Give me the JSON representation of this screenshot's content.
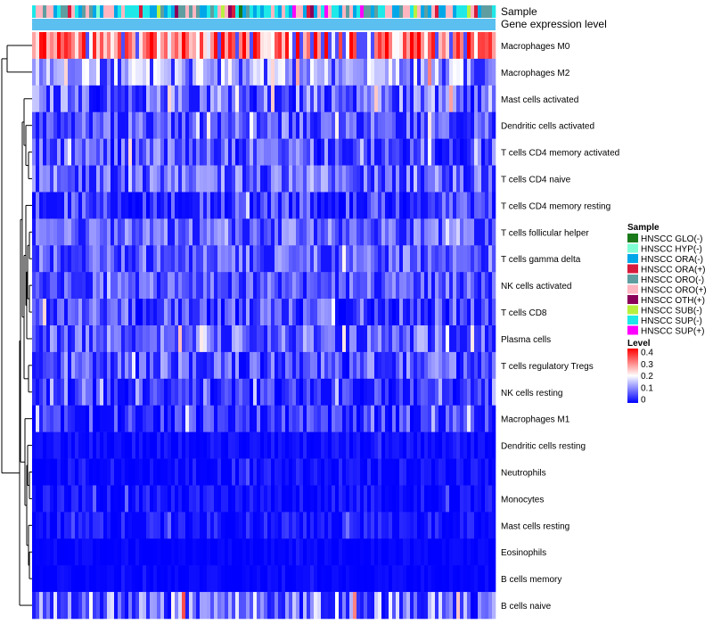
{
  "chart_data": {
    "type": "heatmap",
    "title": "",
    "annotation_labels": {
      "sample": "Sample",
      "gene_expression": "Gene expression level"
    },
    "rows": [
      {
        "label": "Macrophages M0",
        "mean": 0.3,
        "spread": 0.12
      },
      {
        "label": "Macrophages M2",
        "mean": 0.14,
        "spread": 0.07
      },
      {
        "label": "Mast cells activated",
        "mean": 0.08,
        "spread": 0.08
      },
      {
        "label": "Dendritic cells activated",
        "mean": 0.07,
        "spread": 0.06
      },
      {
        "label": "T cells CD4 memory activated",
        "mean": 0.07,
        "spread": 0.07
      },
      {
        "label": "T cells CD4 naive",
        "mean": 0.08,
        "spread": 0.07
      },
      {
        "label": "T cells CD4 memory resting",
        "mean": 0.05,
        "spread": 0.06
      },
      {
        "label": "T cells follicular helper",
        "mean": 0.09,
        "spread": 0.05
      },
      {
        "label": "T cells gamma delta",
        "mean": 0.08,
        "spread": 0.06
      },
      {
        "label": "NK cells activated",
        "mean": 0.07,
        "spread": 0.06
      },
      {
        "label": "T cells CD8",
        "mean": 0.06,
        "spread": 0.07
      },
      {
        "label": "Plasma cells",
        "mean": 0.08,
        "spread": 0.07
      },
      {
        "label": "T cells regulatory  Tregs",
        "mean": 0.07,
        "spread": 0.07
      },
      {
        "label": "NK cells resting",
        "mean": 0.04,
        "spread": 0.05
      },
      {
        "label": "Macrophages M1",
        "mean": 0.04,
        "spread": 0.06
      },
      {
        "label": "Dendritic cells resting",
        "mean": 0.01,
        "spread": 0.02
      },
      {
        "label": "Neutrophils",
        "mean": 0.01,
        "spread": 0.03
      },
      {
        "label": "Monocytes",
        "mean": 0.01,
        "spread": 0.03
      },
      {
        "label": "Mast cells resting",
        "mean": 0.02,
        "spread": 0.03
      },
      {
        "label": "Eosinophils",
        "mean": 0.005,
        "spread": 0.01
      },
      {
        "label": "B cells memory",
        "mean": 0.005,
        "spread": 0.01
      },
      {
        "label": "B cells naive",
        "mean": 0.1,
        "spread": 0.1
      }
    ],
    "n_samples": 130,
    "sample_legend": {
      "title": "Sample",
      "entries": [
        {
          "label": "HNSCC GLO(-)",
          "color": "#1a7a1a"
        },
        {
          "label": "HNSCC HYP(-)",
          "color": "#7fffd4"
        },
        {
          "label": "HNSCC ORA(-)",
          "color": "#00a7e8"
        },
        {
          "label": "HNSCC ORA(+)",
          "color": "#d81b3c"
        },
        {
          "label": "HNSCC ORO(-)",
          "color": "#5f9ea0"
        },
        {
          "label": "HNSCC ORO(+)",
          "color": "#ffb6c1"
        },
        {
          "label": "HNSCC OTH(+)",
          "color": "#8b0058"
        },
        {
          "label": "HNSCC SUB(-)",
          "color": "#b8f040"
        },
        {
          "label": "HNSCC SUP(-)",
          "color": "#1fe8e8"
        },
        {
          "label": "HNSCC SUP(+)",
          "color": "#ff00ff"
        }
      ]
    },
    "level_legend": {
      "title": "Level",
      "ticks": [
        "0.4",
        "0.3",
        "0.2",
        "0.1",
        "0"
      ],
      "range": [
        0,
        0.4
      ],
      "colors": {
        "low": "#0000ff",
        "mid": "#ffffff",
        "high": "#ff0000"
      }
    },
    "gene_expression_bar_color": "#5bc0f0"
  }
}
